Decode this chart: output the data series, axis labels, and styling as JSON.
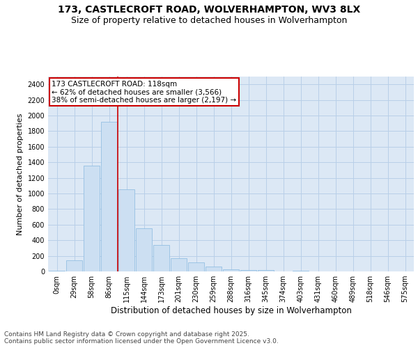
{
  "title": "173, CASTLECROFT ROAD, WOLVERHAMPTON, WV3 8LX",
  "subtitle": "Size of property relative to detached houses in Wolverhampton",
  "xlabel": "Distribution of detached houses by size in Wolverhampton",
  "ylabel": "Number of detached properties",
  "categories": [
    "0sqm",
    "29sqm",
    "58sqm",
    "86sqm",
    "115sqm",
    "144sqm",
    "173sqm",
    "201sqm",
    "230sqm",
    "259sqm",
    "288sqm",
    "316sqm",
    "345sqm",
    "374sqm",
    "403sqm",
    "431sqm",
    "460sqm",
    "489sqm",
    "518sqm",
    "546sqm",
    "575sqm"
  ],
  "bar_values": [
    5,
    140,
    1360,
    1920,
    1055,
    555,
    340,
    170,
    115,
    60,
    25,
    20,
    15,
    0,
    5,
    0,
    0,
    0,
    0,
    0,
    0
  ],
  "bar_color": "#ccdff2",
  "bar_edge_color": "#88b8e0",
  "grid_color": "#b8cfe8",
  "background_color": "#dce8f5",
  "vline_color": "#cc0000",
  "vline_index": 3.5,
  "annotation_text": "173 CASTLECROFT ROAD: 118sqm\n← 62% of detached houses are smaller (3,566)\n38% of semi-detached houses are larger (2,197) →",
  "annotation_box_facecolor": "#ffffff",
  "annotation_box_edgecolor": "#cc0000",
  "footer_text": "Contains HM Land Registry data © Crown copyright and database right 2025.\nContains public sector information licensed under the Open Government Licence v3.0.",
  "ylim": [
    0,
    2500
  ],
  "yticks": [
    0,
    200,
    400,
    600,
    800,
    1000,
    1200,
    1400,
    1600,
    1800,
    2000,
    2200,
    2400
  ],
  "title_fontsize": 10,
  "subtitle_fontsize": 9,
  "xlabel_fontsize": 8.5,
  "ylabel_fontsize": 8,
  "tick_fontsize": 7,
  "annotation_fontsize": 7.5,
  "footer_fontsize": 6.5
}
